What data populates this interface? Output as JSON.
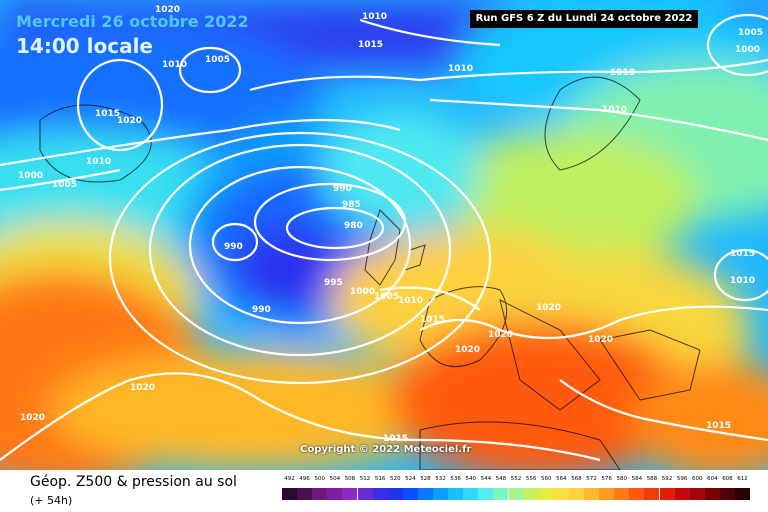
{
  "header": {
    "date": "Mercredi 26 octobre 2022",
    "time": "14:00 locale",
    "run": "Run GFS 6 Z du Lundi 24 octobre 2022"
  },
  "footer": {
    "title": "Géop. Z500 & pression au sol",
    "subtitle": "(+ 54h)",
    "copyright": "Copyright © 2022 Meteociel.fr"
  },
  "scale": {
    "labels": [
      "492",
      "496",
      "500",
      "504",
      "508",
      "512",
      "516",
      "520",
      "524",
      "528",
      "532",
      "536",
      "540",
      "544",
      "548",
      "552",
      "556",
      "560",
      "564",
      "568",
      "572",
      "576",
      "580",
      "584",
      "588",
      "592",
      "596",
      "600",
      "604",
      "608",
      "612"
    ],
    "colors": [
      "#2a0a2e",
      "#4a0f52",
      "#6b1a7a",
      "#7d1fa0",
      "#8b28c8",
      "#6a2ad8",
      "#3d2de8",
      "#1f35f0",
      "#0a50ff",
      "#0a78ff",
      "#0a9eff",
      "#18c0ff",
      "#30d8ff",
      "#58ecf0",
      "#80f4c0",
      "#a6f490",
      "#c8f060",
      "#e8ec40",
      "#f8e040",
      "#ffd040",
      "#ffb830",
      "#ff9a20",
      "#ff7a18",
      "#ff5a10",
      "#f03a0a",
      "#e01e0a",
      "#c40a0a",
      "#a0060a",
      "#780408",
      "#500206",
      "#2a0104"
    ]
  },
  "isobars": [
    "1020",
    "1010",
    "1005",
    "1010",
    "1015",
    "1015",
    "1020",
    "1010",
    "1000",
    "1005",
    "1010",
    "1010",
    "1010",
    "990",
    "985",
    "980",
    "990",
    "990",
    "995",
    "1000",
    "1005",
    "1010",
    "1015",
    "1020",
    "1020",
    "1020",
    "1020",
    "1020",
    "1020",
    "1015",
    "1015",
    "1010",
    "1015",
    "1000",
    "1005"
  ]
}
